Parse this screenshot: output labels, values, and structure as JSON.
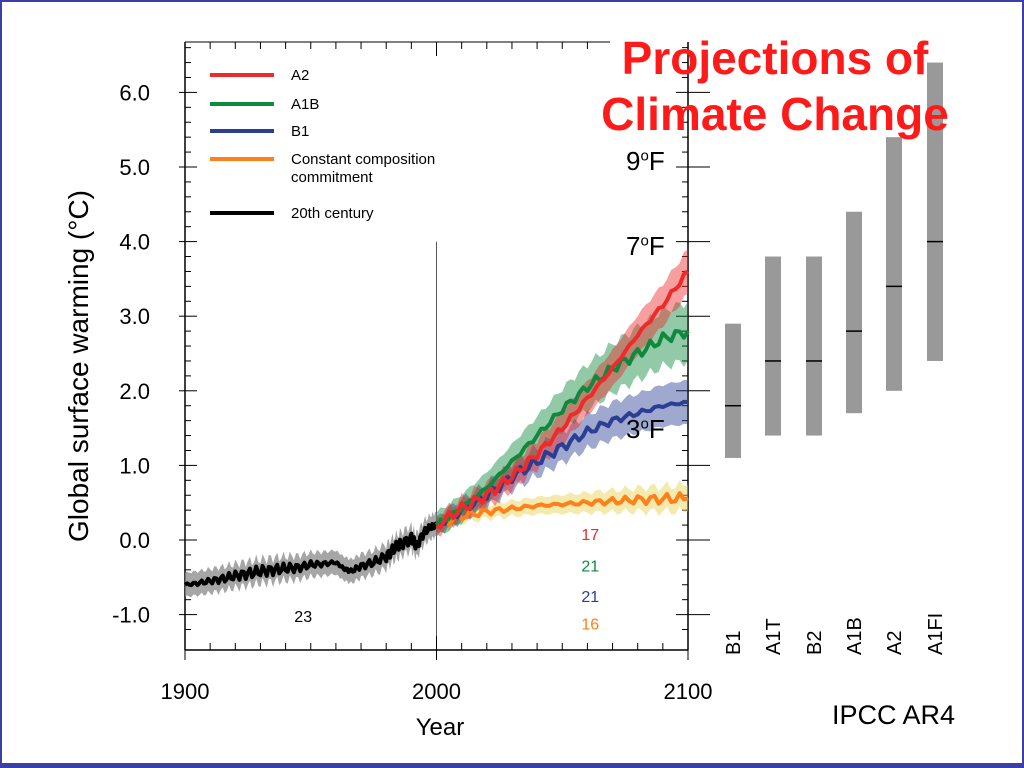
{
  "slide": {
    "title_line1": "Projections of",
    "title_line2": "Climate Change",
    "source": "IPCC AR4",
    "annotations": [
      {
        "num": "9",
        "sup": "o",
        "unit": "F"
      },
      {
        "num": "7",
        "sup": "o",
        "unit": "F"
      },
      {
        "num": "3",
        "sup": "o",
        "unit": "F"
      }
    ]
  },
  "colors": {
    "A2": "#ee2a2a",
    "A1B": "#0e8a3e",
    "B1": "#2b3e94",
    "commitment": "#ff7f1a",
    "century20": "#000000",
    "range_bar": "#999999",
    "frame": "#3b3fa8",
    "title": "#ff1a1a"
  },
  "chart_data": [
    {
      "type": "line",
      "xlabel": "Year",
      "ylabel": "Global surface warming (°C)",
      "xlim": [
        1900,
        2100
      ],
      "ylim": [
        -1.3,
        6.5
      ],
      "xticks": [
        "1900",
        "2000",
        "2100"
      ],
      "xtick_values": [
        1900,
        2000,
        2100
      ],
      "yticks": [
        "6.0",
        "5.0",
        "4.0",
        "3.0",
        "2.0",
        "1.0",
        "0.0",
        "-1.0"
      ],
      "ytick_values": [
        6,
        5,
        4,
        3,
        2,
        1,
        0,
        -1
      ],
      "legend_position": "top-left",
      "legend": [
        {
          "label": "A2",
          "key": "A2"
        },
        {
          "label": "A1B",
          "key": "A1B"
        },
        {
          "label": "B1",
          "key": "B1"
        },
        {
          "label": "Constant composition",
          "label2": "commitment",
          "key": "commitment"
        },
        {
          "label": "20th century",
          "key": "century20"
        }
      ],
      "series": [
        {
          "name": "20th century",
          "key": "century20",
          "x": [
            1900,
            1905,
            1910,
            1915,
            1920,
            1925,
            1930,
            1935,
            1940,
            1945,
            1950,
            1955,
            1960,
            1963,
            1966,
            1970,
            1975,
            1980,
            1983,
            1986,
            1990,
            1992,
            1995,
            1998,
            2000
          ],
          "y": [
            -0.6,
            -0.58,
            -0.55,
            -0.52,
            -0.48,
            -0.45,
            -0.42,
            -0.4,
            -0.38,
            -0.37,
            -0.33,
            -0.32,
            -0.3,
            -0.38,
            -0.42,
            -0.35,
            -0.3,
            -0.22,
            -0.12,
            -0.05,
            0.02,
            -0.08,
            0.1,
            0.18,
            0.2
          ],
          "band": 0.16
        },
        {
          "name": "A2",
          "key": "A2",
          "x": [
            2000,
            2010,
            2020,
            2030,
            2040,
            2050,
            2060,
            2070,
            2080,
            2090,
            2100
          ],
          "y": [
            0.2,
            0.42,
            0.6,
            0.85,
            1.15,
            1.5,
            1.9,
            2.3,
            2.75,
            3.15,
            3.6
          ],
          "band": 0.3
        },
        {
          "name": "A1B",
          "key": "A1B",
          "x": [
            2000,
            2010,
            2020,
            2030,
            2040,
            2050,
            2060,
            2070,
            2080,
            2090,
            2100
          ],
          "y": [
            0.2,
            0.42,
            0.7,
            1.05,
            1.4,
            1.75,
            2.05,
            2.3,
            2.5,
            2.7,
            2.8
          ],
          "band": 0.4
        },
        {
          "name": "B1",
          "key": "B1",
          "x": [
            2000,
            2010,
            2020,
            2030,
            2040,
            2050,
            2060,
            2070,
            2080,
            2090,
            2100
          ],
          "y": [
            0.2,
            0.4,
            0.6,
            0.85,
            1.05,
            1.25,
            1.45,
            1.6,
            1.7,
            1.8,
            1.85
          ],
          "band": 0.3
        },
        {
          "name": "Constant composition commitment",
          "key": "commitment",
          "x": [
            2000,
            2010,
            2020,
            2030,
            2040,
            2050,
            2060,
            2070,
            2080,
            2090,
            2100
          ],
          "y": [
            0.2,
            0.32,
            0.38,
            0.42,
            0.46,
            0.48,
            0.5,
            0.52,
            0.54,
            0.55,
            0.56
          ],
          "band": 0.18
        }
      ],
      "model_counts": [
        {
          "label": "23",
          "key": "century20",
          "x": 1947,
          "y": -1.1
        },
        {
          "label": "17",
          "key": "A2",
          "x": 2054,
          "y": 0.0
        },
        {
          "label": "21",
          "key": "A1B",
          "x": 2054,
          "y": -0.42
        },
        {
          "label": "21",
          "key": "B1",
          "x": 2054,
          "y": -0.83
        },
        {
          "label": "16",
          "key": "commitment",
          "x": 2054,
          "y": -1.2
        }
      ]
    },
    {
      "type": "bar",
      "description_of_marks": "likely warming range bars with best-estimate line",
      "categories": [
        "B1",
        "A1T",
        "B2",
        "A1B",
        "A2",
        "A1FI"
      ],
      "ranges": [
        [
          1.1,
          2.9
        ],
        [
          1.4,
          3.8
        ],
        [
          1.4,
          3.8
        ],
        [
          1.7,
          4.4
        ],
        [
          2.0,
          5.4
        ],
        [
          2.4,
          6.4
        ]
      ],
      "best_estimates": [
        1.8,
        2.4,
        2.4,
        2.8,
        3.4,
        4.0
      ]
    }
  ]
}
